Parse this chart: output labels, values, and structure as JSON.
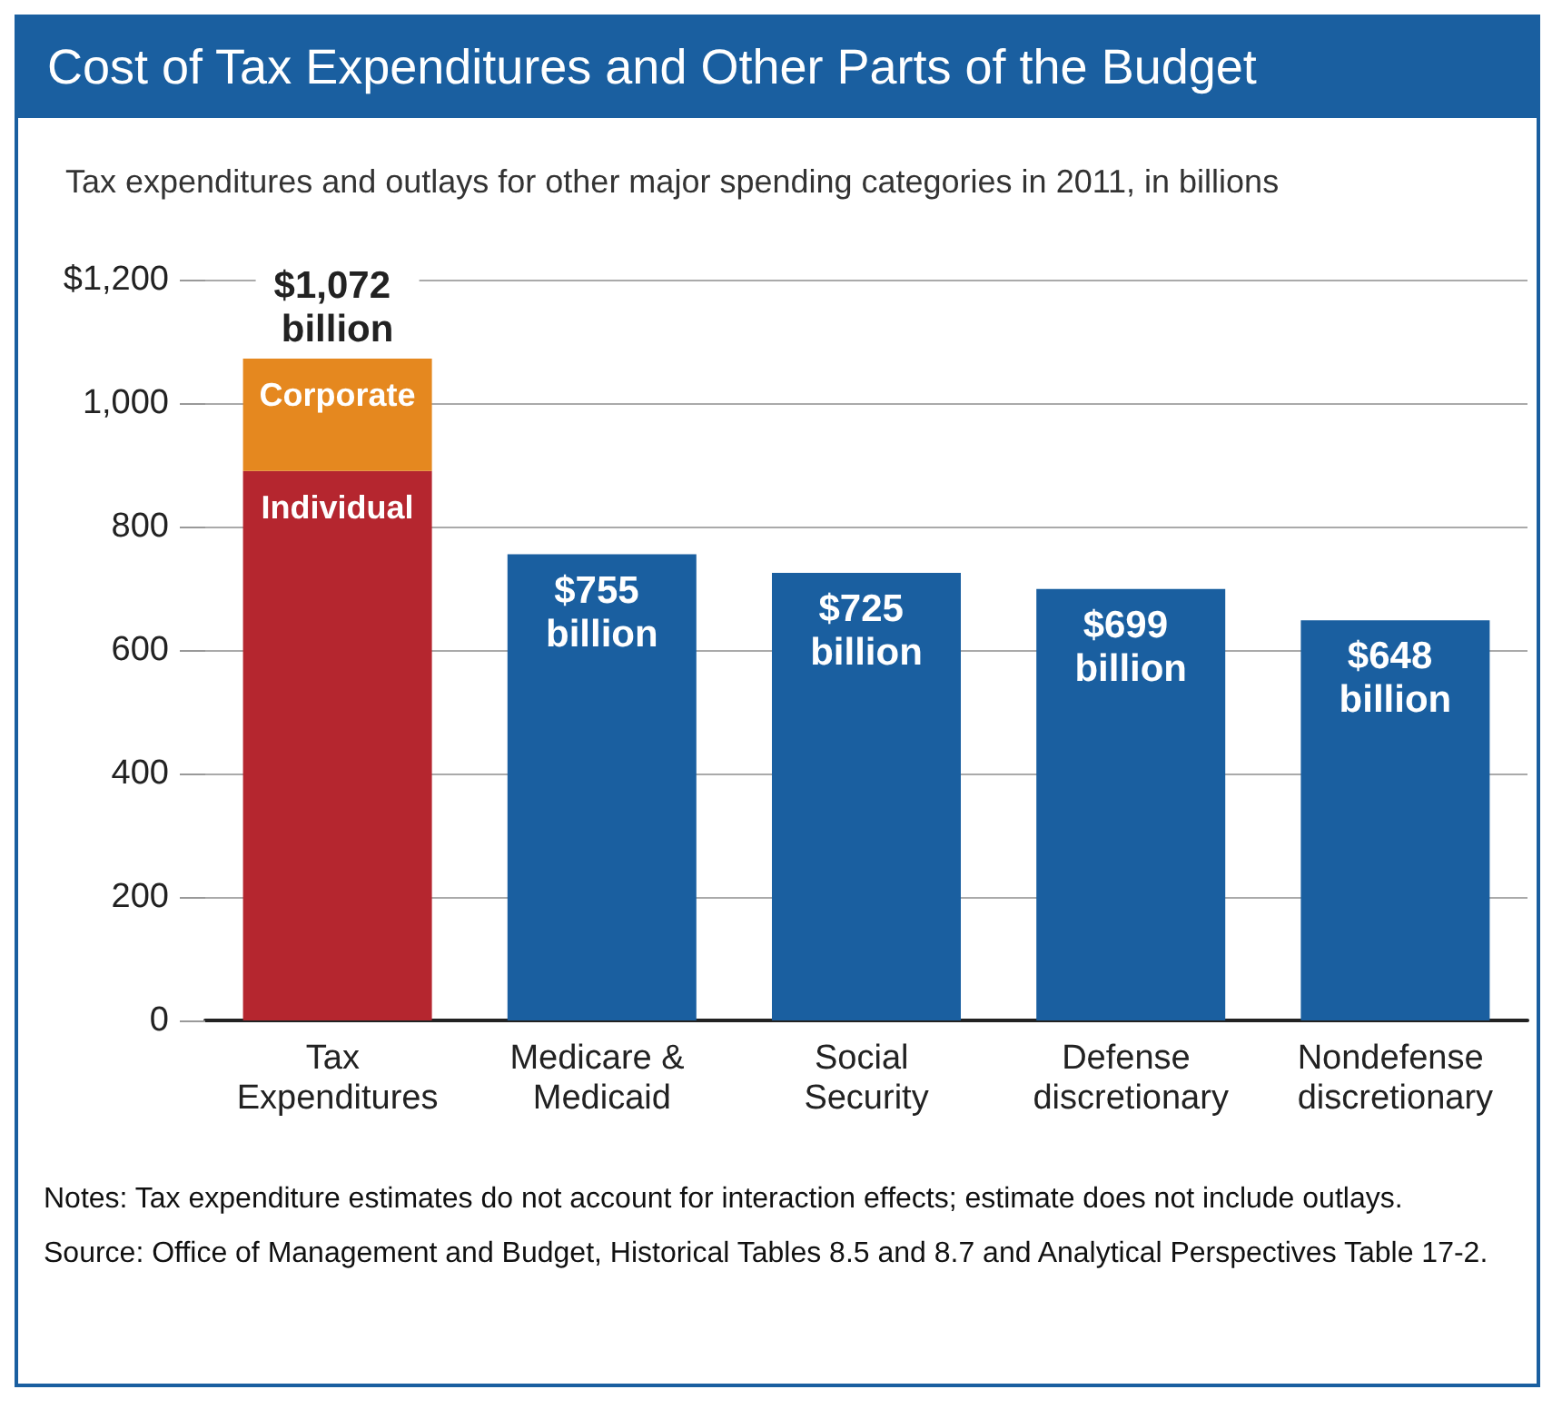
{
  "chart_data": {
    "type": "bar",
    "title": "Cost of Tax Expenditures and Other Parts of the Budget",
    "subtitle": "Tax expenditures and outlays for other major spending categories in 2011, in billions",
    "categories": [
      "Tax Expenditures",
      "Medicare & Medicaid",
      "Social Security",
      "Defense discretionary",
      "Nondefense discretionary"
    ],
    "stacked": true,
    "series": [
      {
        "name": "Individual",
        "color": "#b5262f",
        "values": [
          890,
          null,
          null,
          null,
          null
        ]
      },
      {
        "name": "Corporate",
        "color": "#e5881f",
        "values": [
          182,
          null,
          null,
          null,
          null
        ]
      },
      {
        "color": "#1a5fa0",
        "values": [
          null,
          755,
          725,
          699,
          648
        ],
        "value_labels": [
          null,
          "$755 billion",
          "$725 billion",
          "$699 billion",
          "$648 billion"
        ]
      }
    ],
    "totals": [
      "$1,072 billion",
      null,
      null,
      null,
      null
    ],
    "ylim": [
      0,
      1200
    ],
    "yticks": [
      0,
      200,
      400,
      600,
      800,
      {
        "value": 1000,
        "label": "1,000"
      },
      {
        "value": 1200,
        "label": "$1,200"
      }
    ],
    "grid": "y",
    "legend": false,
    "annotations": [
      "Notes: Tax expenditure estimates do not account for interaction effects; estimate does not include outlays.",
      "Source: Office of Management and Budget, Historical Tables 8.5 and 8.7 and Analytical Perspectives Table 17-2."
    ]
  }
}
